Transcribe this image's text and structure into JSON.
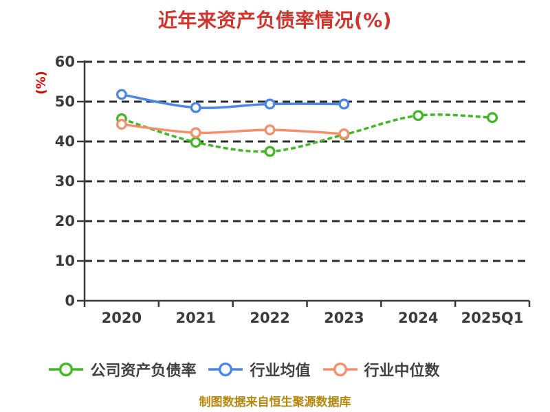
{
  "title": {
    "text": "近年来资产负债率情况(%)",
    "color": "#d0342c"
  },
  "ylabel": {
    "text": "(%)",
    "color": "#e60000"
  },
  "source": {
    "text": "制图数据来自恒生聚源数据库",
    "color": "#b8860b"
  },
  "chart_data": {
    "type": "line",
    "title": "近年来资产负债率情况(%)",
    "xlabel": "",
    "ylabel": "(%)",
    "categories": [
      "2020",
      "2021",
      "2022",
      "2023",
      "2024",
      "2025Q1"
    ],
    "yticks": [
      0,
      10,
      20,
      30,
      40,
      50,
      60
    ],
    "ylim": [
      0,
      60
    ],
    "grid": "horizontal-dashed",
    "legend_position": "bottom",
    "series": [
      {
        "name": "公司资产负债率",
        "color": "#3fb823",
        "line_style": "dashed",
        "marker": "circle-open",
        "values": [
          45.7,
          39.8,
          37.5,
          41.7,
          46.5,
          46.0
        ]
      },
      {
        "name": "行业均值",
        "color": "#4a86e8",
        "line_style": "solid",
        "marker": "circle-open",
        "values": [
          51.8,
          48.5,
          49.4,
          49.4,
          null,
          null
        ]
      },
      {
        "name": "行业中位数",
        "color": "#f78e6b",
        "line_style": "solid",
        "marker": "circle-open",
        "values": [
          44.3,
          42.2,
          42.9,
          41.9,
          null,
          null
        ]
      }
    ],
    "styles": {
      "background": "#ffffff",
      "grid_color": "#2d2d2d",
      "axis_color": "#38383a",
      "tick_label_color": "#3a3a3c",
      "legend_text_color": "#414143"
    }
  }
}
